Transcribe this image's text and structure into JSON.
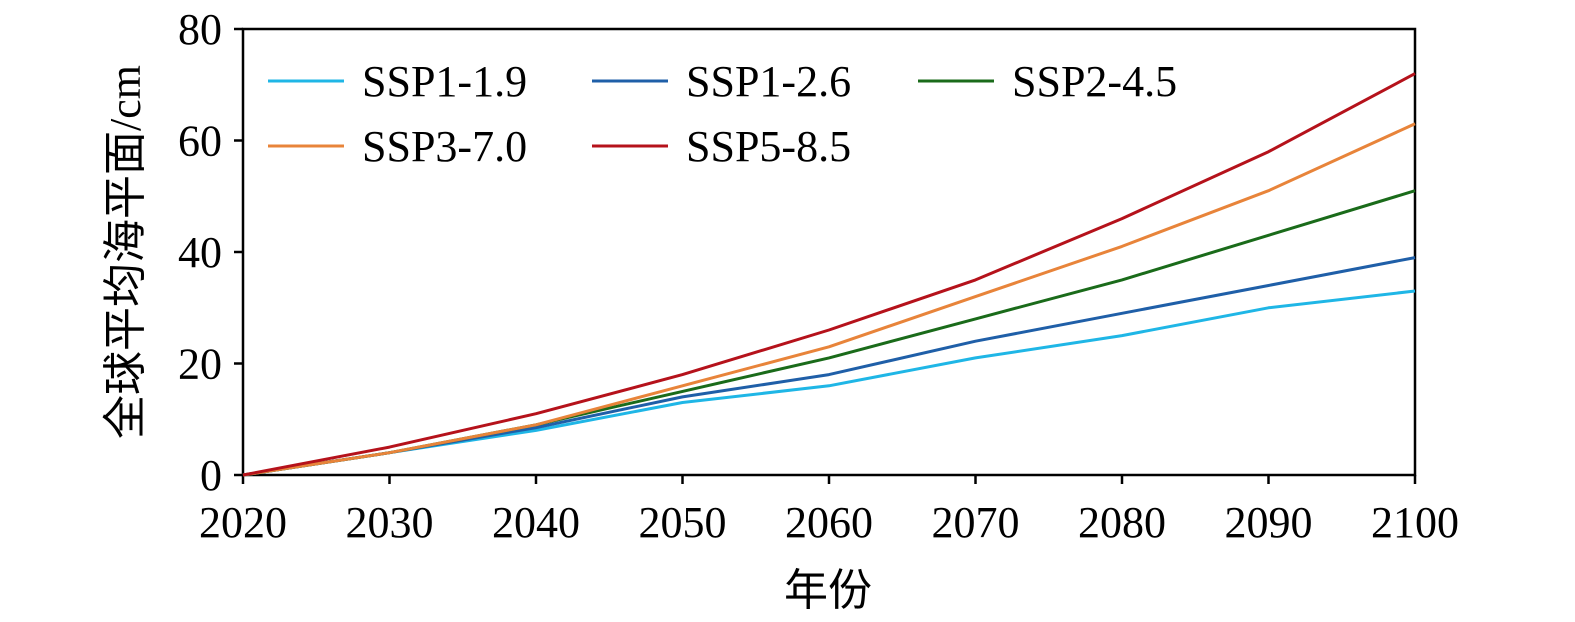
{
  "chart_data": {
    "type": "line",
    "xlabel": "年份",
    "ylabel": "全球平均海平面/cm",
    "x": [
      2020,
      2030,
      2040,
      2050,
      2060,
      2070,
      2080,
      2090,
      2100
    ],
    "xlim": [
      2020,
      2100
    ],
    "ylim": [
      0,
      80
    ],
    "y_ticks": [
      0,
      20,
      40,
      60,
      80
    ],
    "grid": false,
    "legend_position": "top-left",
    "series": [
      {
        "name": "SSP1-1.9",
        "color": "#1fb6e6",
        "values": [
          0,
          4,
          8,
          13,
          16,
          21,
          25,
          30,
          33
        ]
      },
      {
        "name": "SSP1-2.6",
        "color": "#1f5fa8",
        "values": [
          0,
          4,
          8.5,
          14,
          18,
          24,
          29,
          34,
          39
        ]
      },
      {
        "name": "SSP2-4.5",
        "color": "#1a6b1a",
        "values": [
          0,
          4,
          9,
          15,
          21,
          28,
          35,
          43,
          51
        ]
      },
      {
        "name": "SSP3-7.0",
        "color": "#e8843a",
        "values": [
          0,
          4,
          9,
          16,
          23,
          32,
          41,
          51,
          63
        ]
      },
      {
        "name": "SSP5-8.5",
        "color": "#b5121b",
        "values": [
          0,
          5,
          11,
          18,
          26,
          35,
          46,
          58,
          72
        ]
      }
    ]
  }
}
